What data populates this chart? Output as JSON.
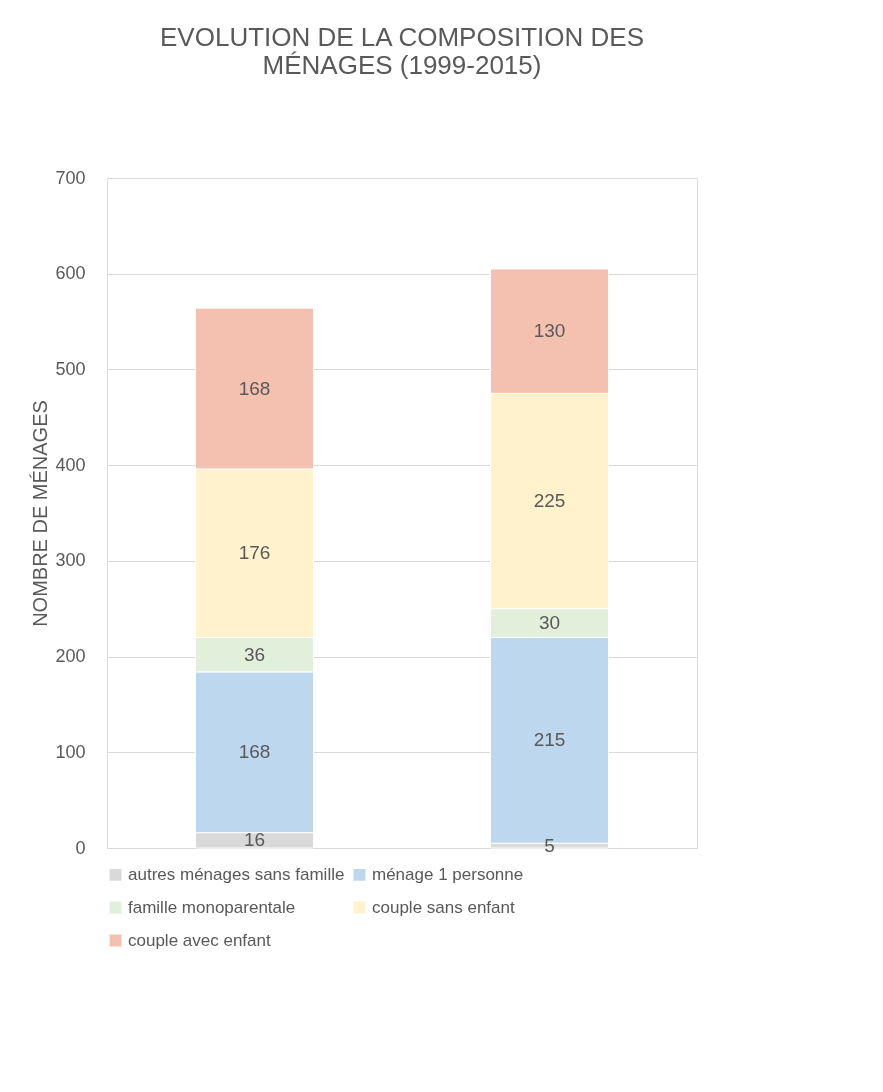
{
  "chart_data": {
    "type": "bar",
    "title": "EVOLUTION DE LA COMPOSITION DES MÉNAGES (1999-2015)",
    "ylabel": "NOMBRE DE MÉNAGES",
    "categories": [
      null,
      null
    ],
    "series": [
      {
        "name": "autres ménages sans famille",
        "color": "#d9d9d9",
        "values": [
          16,
          5
        ]
      },
      {
        "name": "ménage 1 personne",
        "color": "#bdd7ee",
        "values": [
          168,
          215
        ]
      },
      {
        "name": "famille monoparentale",
        "color": "#e2efda",
        "values": [
          36,
          30
        ]
      },
      {
        "name": "couple sans enfant",
        "color": "#fff2cc",
        "values": [
          176,
          225
        ]
      },
      {
        "name": "couple avec enfant",
        "color": "#f4c0b0",
        "values": [
          168,
          130
        ]
      }
    ],
    "stacked": true,
    "data_labels": true,
    "ylim": [
      0,
      700
    ],
    "yticks": [
      0,
      100,
      200,
      300,
      400,
      500,
      600,
      700
    ],
    "grid": "y",
    "legend": "bottom",
    "tick_labels": "y"
  }
}
